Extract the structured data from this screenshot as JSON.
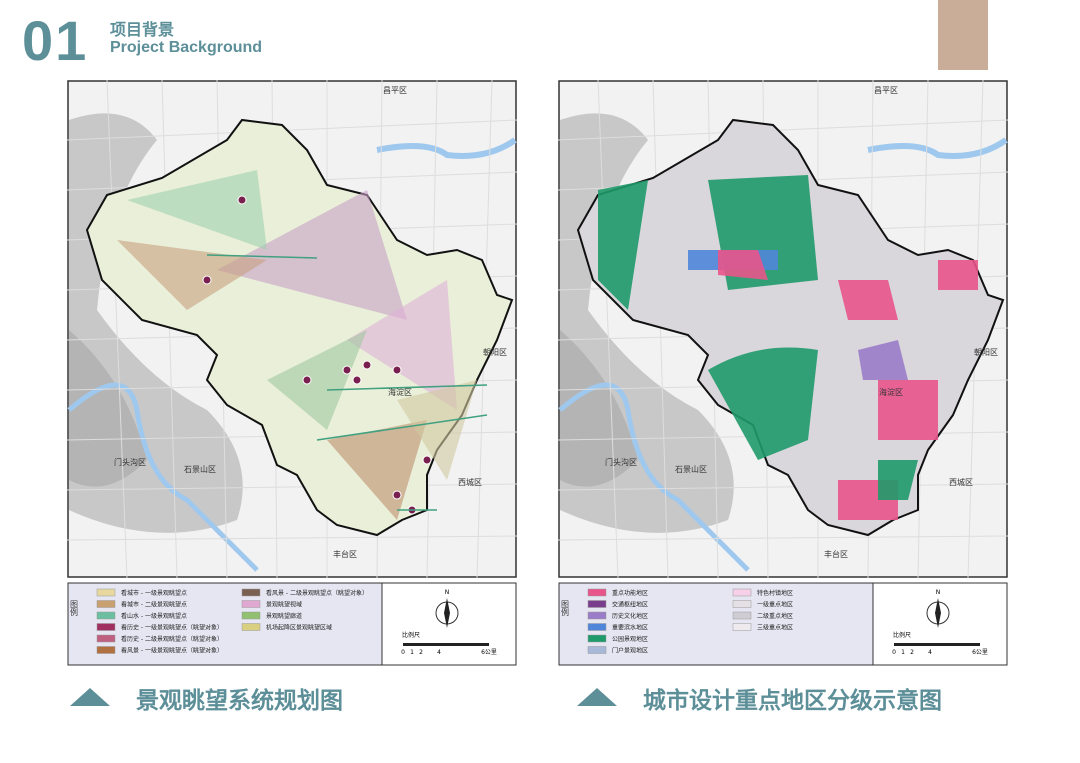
{
  "header": {
    "number": "01",
    "title_cn": "项目背景",
    "title_en": "Project Background"
  },
  "maps": [
    {
      "caption": "景观眺望系统规划图",
      "district_labels": [
        "昌平区",
        "朝阳区",
        "海淀区",
        "门头沟区",
        "石景山区",
        "西城区",
        "丰台区"
      ],
      "legend": {
        "title": "图例",
        "items": [
          "看城市 - 一级景观眺望点",
          "看城市 - 二级景观眺望点",
          "看山水 - 一级景观眺望点",
          "看历史 - 一级景观眺望点（眺望对象）",
          "看历史 - 二级景观眺望点（眺望对象）",
          "看风景 - 一级景观眺望点（眺望对象）",
          "看风景 - 二级景观眺望点（眺望对象）",
          "景观眺望视域",
          "景观眺望廊道",
          "机场起降区景观眺望区域"
        ]
      },
      "scale": {
        "label": "比例尺",
        "ticks": [
          "0",
          "1",
          "2",
          "4",
          "6公里"
        ]
      },
      "compass": "N"
    },
    {
      "caption": "城市设计重点地区分级示意图",
      "district_labels": [
        "昌平区",
        "朝阳区",
        "海淀区",
        "门头沟区",
        "石景山区",
        "西城区",
        "丰台区"
      ],
      "legend": {
        "title": "图例",
        "items": [
          "重点功能地区",
          "交通枢纽地区",
          "历史文化地区",
          "重要滨水地区",
          "公园景观地区",
          "门户景观地区",
          "特色村镇地区",
          "一级重点地区",
          "二级重点地区",
          "三级重点地区"
        ]
      },
      "scale": {
        "label": "比例尺",
        "ticks": [
          "0",
          "1",
          "2",
          "4",
          "6公里"
        ]
      },
      "compass": "N"
    }
  ]
}
